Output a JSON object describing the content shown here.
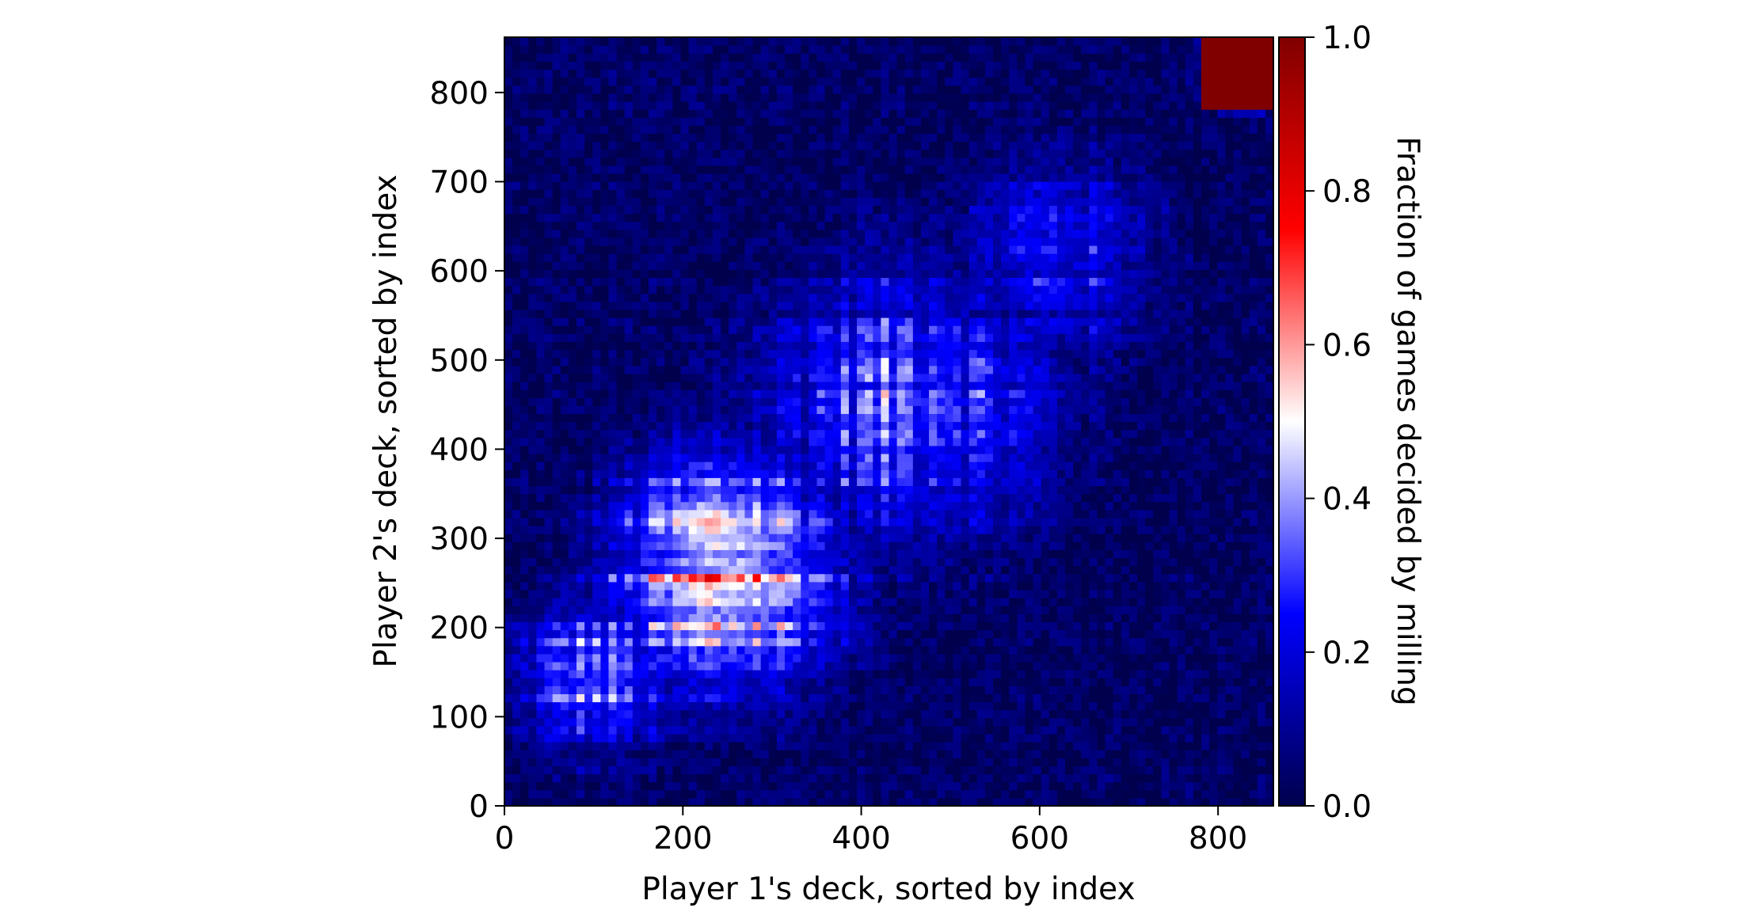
{
  "chart_data": {
    "type": "heatmap",
    "title": "",
    "xlabel": "Player 1's deck, sorted by index",
    "ylabel": "Player 2's deck, sorted by index",
    "xlim": [
      0,
      862
    ],
    "ylim": [
      0,
      862
    ],
    "x_ticks": [
      0,
      200,
      400,
      600,
      800
    ],
    "y_ticks": [
      0,
      100,
      200,
      300,
      400,
      500,
      600,
      700,
      800
    ],
    "x_tick_labels": [
      "0",
      "200",
      "400",
      "600",
      "800"
    ],
    "y_tick_labels": [
      "0",
      "100",
      "200",
      "300",
      "400",
      "500",
      "600",
      "700",
      "800"
    ],
    "grid": false,
    "colormap": "seismic",
    "colorbar": {
      "label": "Fraction of games decided by milling",
      "range": [
        0.0,
        1.0
      ],
      "ticks": [
        0.0,
        0.2,
        0.4,
        0.6,
        0.8,
        1.0
      ],
      "tick_labels": [
        "0.0",
        "0.2",
        "0.4",
        "0.6",
        "0.8",
        "1.0"
      ],
      "colors": [
        "#00004c",
        "#0000ff",
        "#ffffff",
        "#ff0000",
        "#800000"
      ]
    },
    "regions": [
      {
        "x_center": 250,
        "y_center": 260,
        "spread": 130,
        "peak_value": 0.7
      },
      {
        "x_center": 450,
        "y_center": 450,
        "spread": 170,
        "peak_value": 0.4
      },
      {
        "x_center": 100,
        "y_center": 150,
        "spread": 90,
        "peak_value": 0.45
      },
      {
        "x_center": 620,
        "y_center": 620,
        "spread": 120,
        "peak_value": 0.3
      },
      {
        "x_center": 830,
        "y_center": 830,
        "spread": 40,
        "peak_value": 1.0
      }
    ]
  }
}
